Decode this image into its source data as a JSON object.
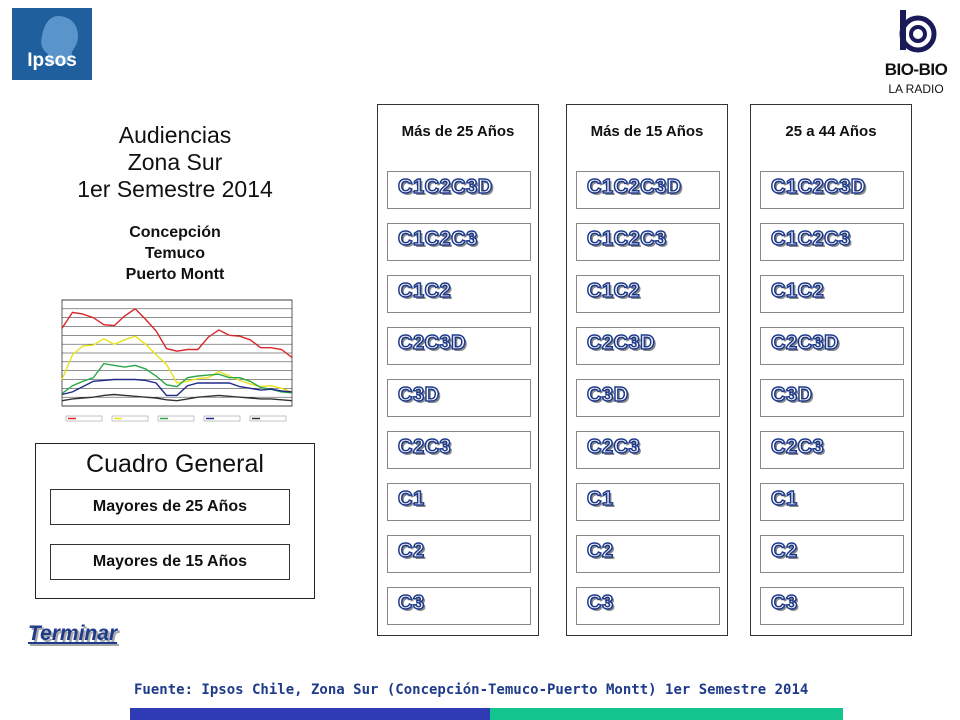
{
  "logos": {
    "ipsos": "Ipsos",
    "biobio_name": "BIO-BIO",
    "biobio_sub": "LA RADIO"
  },
  "title": {
    "line1": "Audiencias",
    "line2": "Zona Sur",
    "line3": "1er Semestre 2014"
  },
  "cities": [
    "Concepción",
    "Temuco",
    "Puerto Montt"
  ],
  "cuadro": {
    "title": "Cuadro General",
    "buttons": [
      "Mayores de 25 Años",
      "Mayores de 15 Años"
    ]
  },
  "terminar": "Terminar",
  "panels": [
    {
      "header": "Más de 25 Años",
      "segments": [
        "C1C2C3D",
        "C1C2C3",
        "C1C2",
        "C2C3D",
        "C3D",
        "C2C3",
        "C1",
        "C2",
        "C3"
      ]
    },
    {
      "header": "Más de 15 Años",
      "segments": [
        "C1C2C3D",
        "C1C2C3",
        "C1C2",
        "C2C3D",
        "C3D",
        "C2C3",
        "C1",
        "C2",
        "C3"
      ]
    },
    {
      "header": "25 a 44 Años",
      "segments": [
        "C1C2C3D",
        "C1C2C3",
        "C1C2",
        "C2C3D",
        "C3D",
        "C2C3",
        "C1",
        "C2",
        "C3"
      ]
    }
  ],
  "footer": "Fuente: Ipsos Chile, Zona Sur (Concepción-Temuco-Puerto Montt) 1er Semestre 2014",
  "colors": {
    "accent_blue": "#1e3a8a",
    "bar_blue": "#2e3bb5",
    "bar_green": "#13c48f",
    "ipsos_blue": "#1f5f9e"
  },
  "chart_data": {
    "type": "line",
    "x": [
      1,
      2,
      3,
      4,
      5,
      6,
      7,
      8,
      9,
      10,
      11,
      12,
      13,
      14,
      15,
      16,
      17,
      18,
      19,
      20,
      21,
      22,
      23
    ],
    "series": [
      {
        "values": [
          8.8,
          10.6,
          10.4,
          10.0,
          9.2,
          9.1,
          10.2,
          11.0,
          9.8,
          8.5,
          6.5,
          6.2,
          6.4,
          6.4,
          7.8,
          8.6,
          8.0,
          7.9,
          7.5,
          6.6,
          6.6,
          6.4,
          5.5
        ],
        "color": "#d9262a"
      },
      {
        "values": [
          3.0,
          5.8,
          6.8,
          6.9,
          7.6,
          7.0,
          7.5,
          7.9,
          7.0,
          5.8,
          4.7,
          2.6,
          2.8,
          3.1,
          3.2,
          3.9,
          3.4,
          2.9,
          2.5,
          2.2,
          2.3,
          2.0,
          1.6
        ],
        "color": "#e8e21a"
      },
      {
        "values": [
          1.4,
          2.3,
          2.8,
          3.2,
          4.8,
          4.6,
          4.4,
          4.6,
          4.2,
          3.4,
          2.4,
          2.2,
          3.2,
          3.4,
          3.5,
          3.6,
          3.2,
          3.2,
          2.8,
          2.1,
          1.9,
          1.6,
          1.5
        ],
        "color": "#2aa84a"
      },
      {
        "values": [
          1.3,
          1.6,
          2.2,
          2.8,
          2.9,
          3.0,
          3.0,
          3.0,
          2.9,
          2.6,
          1.2,
          1.2,
          2.3,
          2.6,
          2.6,
          2.6,
          2.6,
          2.2,
          2.0,
          1.8,
          1.9,
          1.7,
          1.6
        ],
        "color": "#1f2a8a"
      },
      {
        "values": [
          0.6,
          0.8,
          0.9,
          1.0,
          1.2,
          1.3,
          1.2,
          1.1,
          1.0,
          0.9,
          0.7,
          0.6,
          0.8,
          1.0,
          1.1,
          1.2,
          1.1,
          1.0,
          0.9,
          0.8,
          0.8,
          0.7,
          0.6
        ],
        "color": "#333333"
      }
    ],
    "ylim": [
      0,
      12
    ],
    "grid": true
  }
}
